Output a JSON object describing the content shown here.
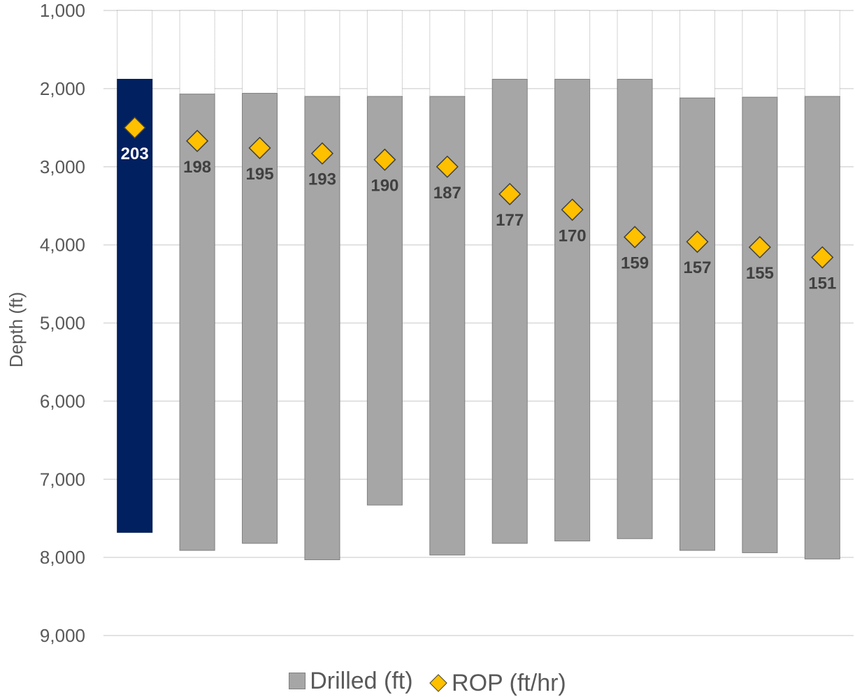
{
  "chart_data": {
    "type": "bar",
    "ylabel": "Depth (ft)",
    "ylim": [
      1000,
      9000
    ],
    "y_inverted": true,
    "yticks": [
      "1,000",
      "2,000",
      "3,000",
      "4,000",
      "5,000",
      "6,000",
      "7,000",
      "8,000",
      "9,000"
    ],
    "grid": true,
    "legend_position": "bottom",
    "highlight_color": "#002060",
    "bar_color": "#a6a6a6",
    "marker_color": "#ffc000",
    "series": [
      {
        "name": "Drilled (ft)",
        "type": "floating-bar",
        "top": [
          1880,
          2070,
          2060,
          2100,
          2100,
          2100,
          1880,
          1880,
          1880,
          2120,
          2110,
          2100
        ],
        "bottom": [
          7680,
          7910,
          7820,
          8030,
          7330,
          7970,
          7820,
          7790,
          7760,
          7910,
          7940,
          8020
        ]
      },
      {
        "name": "ROP (ft/hr)",
        "type": "marker",
        "values": [
          203,
          198,
          195,
          193,
          190,
          187,
          177,
          170,
          159,
          157,
          155,
          151
        ],
        "labels": [
          "203",
          "198",
          "195",
          "193",
          "190",
          "187",
          "177",
          "170",
          "159",
          "157",
          "155",
          "151"
        ],
        "marker_depth": [
          2500,
          2670,
          2760,
          2830,
          2910,
          3000,
          3350,
          3550,
          3900,
          3960,
          4030,
          4160
        ]
      }
    ]
  }
}
